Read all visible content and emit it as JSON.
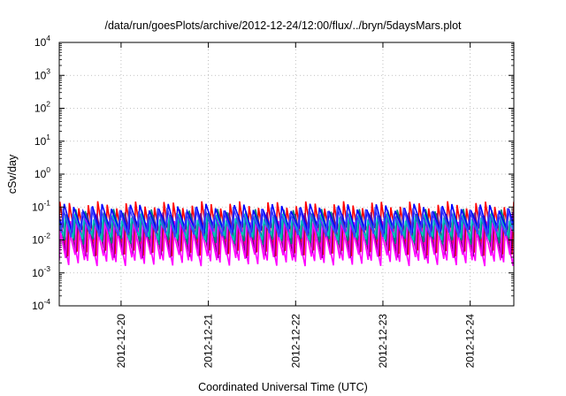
{
  "chart_data": {
    "type": "line",
    "title": "/data/run/goesPlots/archive/2012-12-24/12:00/flux/../bryn/5daysMars.plot",
    "xlabel": "Coordinated Universal Time (UTC)",
    "ylabel": "cSv/day",
    "yscale": "log",
    "ylim": [
      0.0001,
      10000
    ],
    "xlim": [
      "2012-12-19T07:00",
      "2012-12-24T12:00"
    ],
    "grid": true,
    "legend": "none",
    "y_ticks": [
      {
        "base": "10",
        "exp": "-4"
      },
      {
        "base": "10",
        "exp": "-3"
      },
      {
        "base": "10",
        "exp": "-2"
      },
      {
        "base": "10",
        "exp": "-1"
      },
      {
        "base": "10",
        "exp": "0"
      },
      {
        "base": "10",
        "exp": "1"
      },
      {
        "base": "10",
        "exp": "2"
      },
      {
        "base": "10",
        "exp": "3"
      },
      {
        "base": "10",
        "exp": "4"
      }
    ],
    "x_ticks": [
      "2012-12-20",
      "2012-12-21",
      "2012-12-22",
      "2012-12-23",
      "2012-12-24"
    ],
    "cycle_hours": 2.6,
    "series": [
      {
        "color": "#ff00ff",
        "peak": 0.03,
        "trough": 0.002
      },
      {
        "color": "#ff0000",
        "peak": 0.12,
        "trough": 0.004
      },
      {
        "color": "#800080",
        "peak": 0.055,
        "trough": 0.0035
      },
      {
        "color": "#ff00ff",
        "peak": 0.045,
        "trough": 0.003
      },
      {
        "color": "#008080",
        "peak": 0.07,
        "trough": 0.009
      },
      {
        "color": "#00c0c0",
        "peak": 0.05,
        "trough": 0.012
      },
      {
        "color": "#0000ff",
        "peak": 0.1,
        "trough": 0.02
      },
      {
        "color": "#4040ff",
        "peak": 0.08,
        "trough": 0.015
      }
    ]
  }
}
